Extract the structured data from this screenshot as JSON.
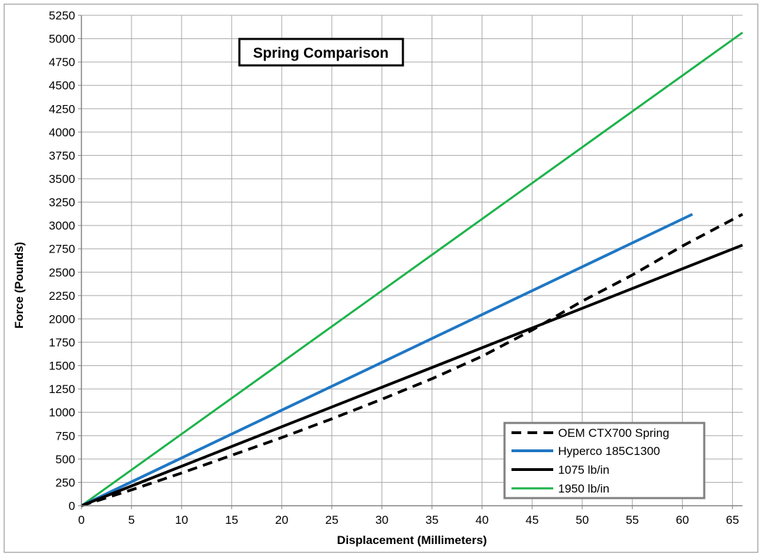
{
  "chart_data": {
    "type": "line",
    "title": "Spring Comparison",
    "xlabel": "Displacement (Millimeters)",
    "ylabel": "Force (Pounds)",
    "xlim": [
      0,
      66
    ],
    "ylim": [
      0,
      5250
    ],
    "x_ticks": [
      0,
      5,
      10,
      15,
      20,
      25,
      30,
      35,
      40,
      45,
      50,
      55,
      60,
      65
    ],
    "y_ticks": [
      0,
      250,
      500,
      750,
      1000,
      1250,
      1500,
      1750,
      2000,
      2250,
      2500,
      2750,
      3000,
      3250,
      3500,
      3750,
      4000,
      4250,
      4500,
      4750,
      5000,
      5250
    ],
    "grid": true,
    "legend_position": "bottom-right",
    "series": [
      {
        "name": "OEM CTX700 Spring",
        "color": "#000000",
        "style": "dashed",
        "x": [
          0,
          5,
          10,
          15,
          20,
          25,
          30,
          35,
          40,
          45,
          50,
          55,
          60,
          66
        ],
        "y": [
          0,
          170,
          350,
          540,
          730,
          930,
          1140,
          1360,
          1600,
          1880,
          2190,
          2470,
          2780,
          3120
        ]
      },
      {
        "name": "Hyperco 185C1300",
        "color": "#1f77c4",
        "style": "solid",
        "x": [
          0,
          61
        ],
        "y": [
          0,
          3120
        ]
      },
      {
        "name": "1075 lb/in",
        "color": "#000000",
        "style": "solid",
        "x": [
          0,
          66
        ],
        "y": [
          0,
          2790
        ]
      },
      {
        "name": "1950 lb/in",
        "color": "#1db34a",
        "style": "solid",
        "x": [
          0,
          66
        ],
        "y": [
          0,
          5065
        ]
      }
    ]
  }
}
